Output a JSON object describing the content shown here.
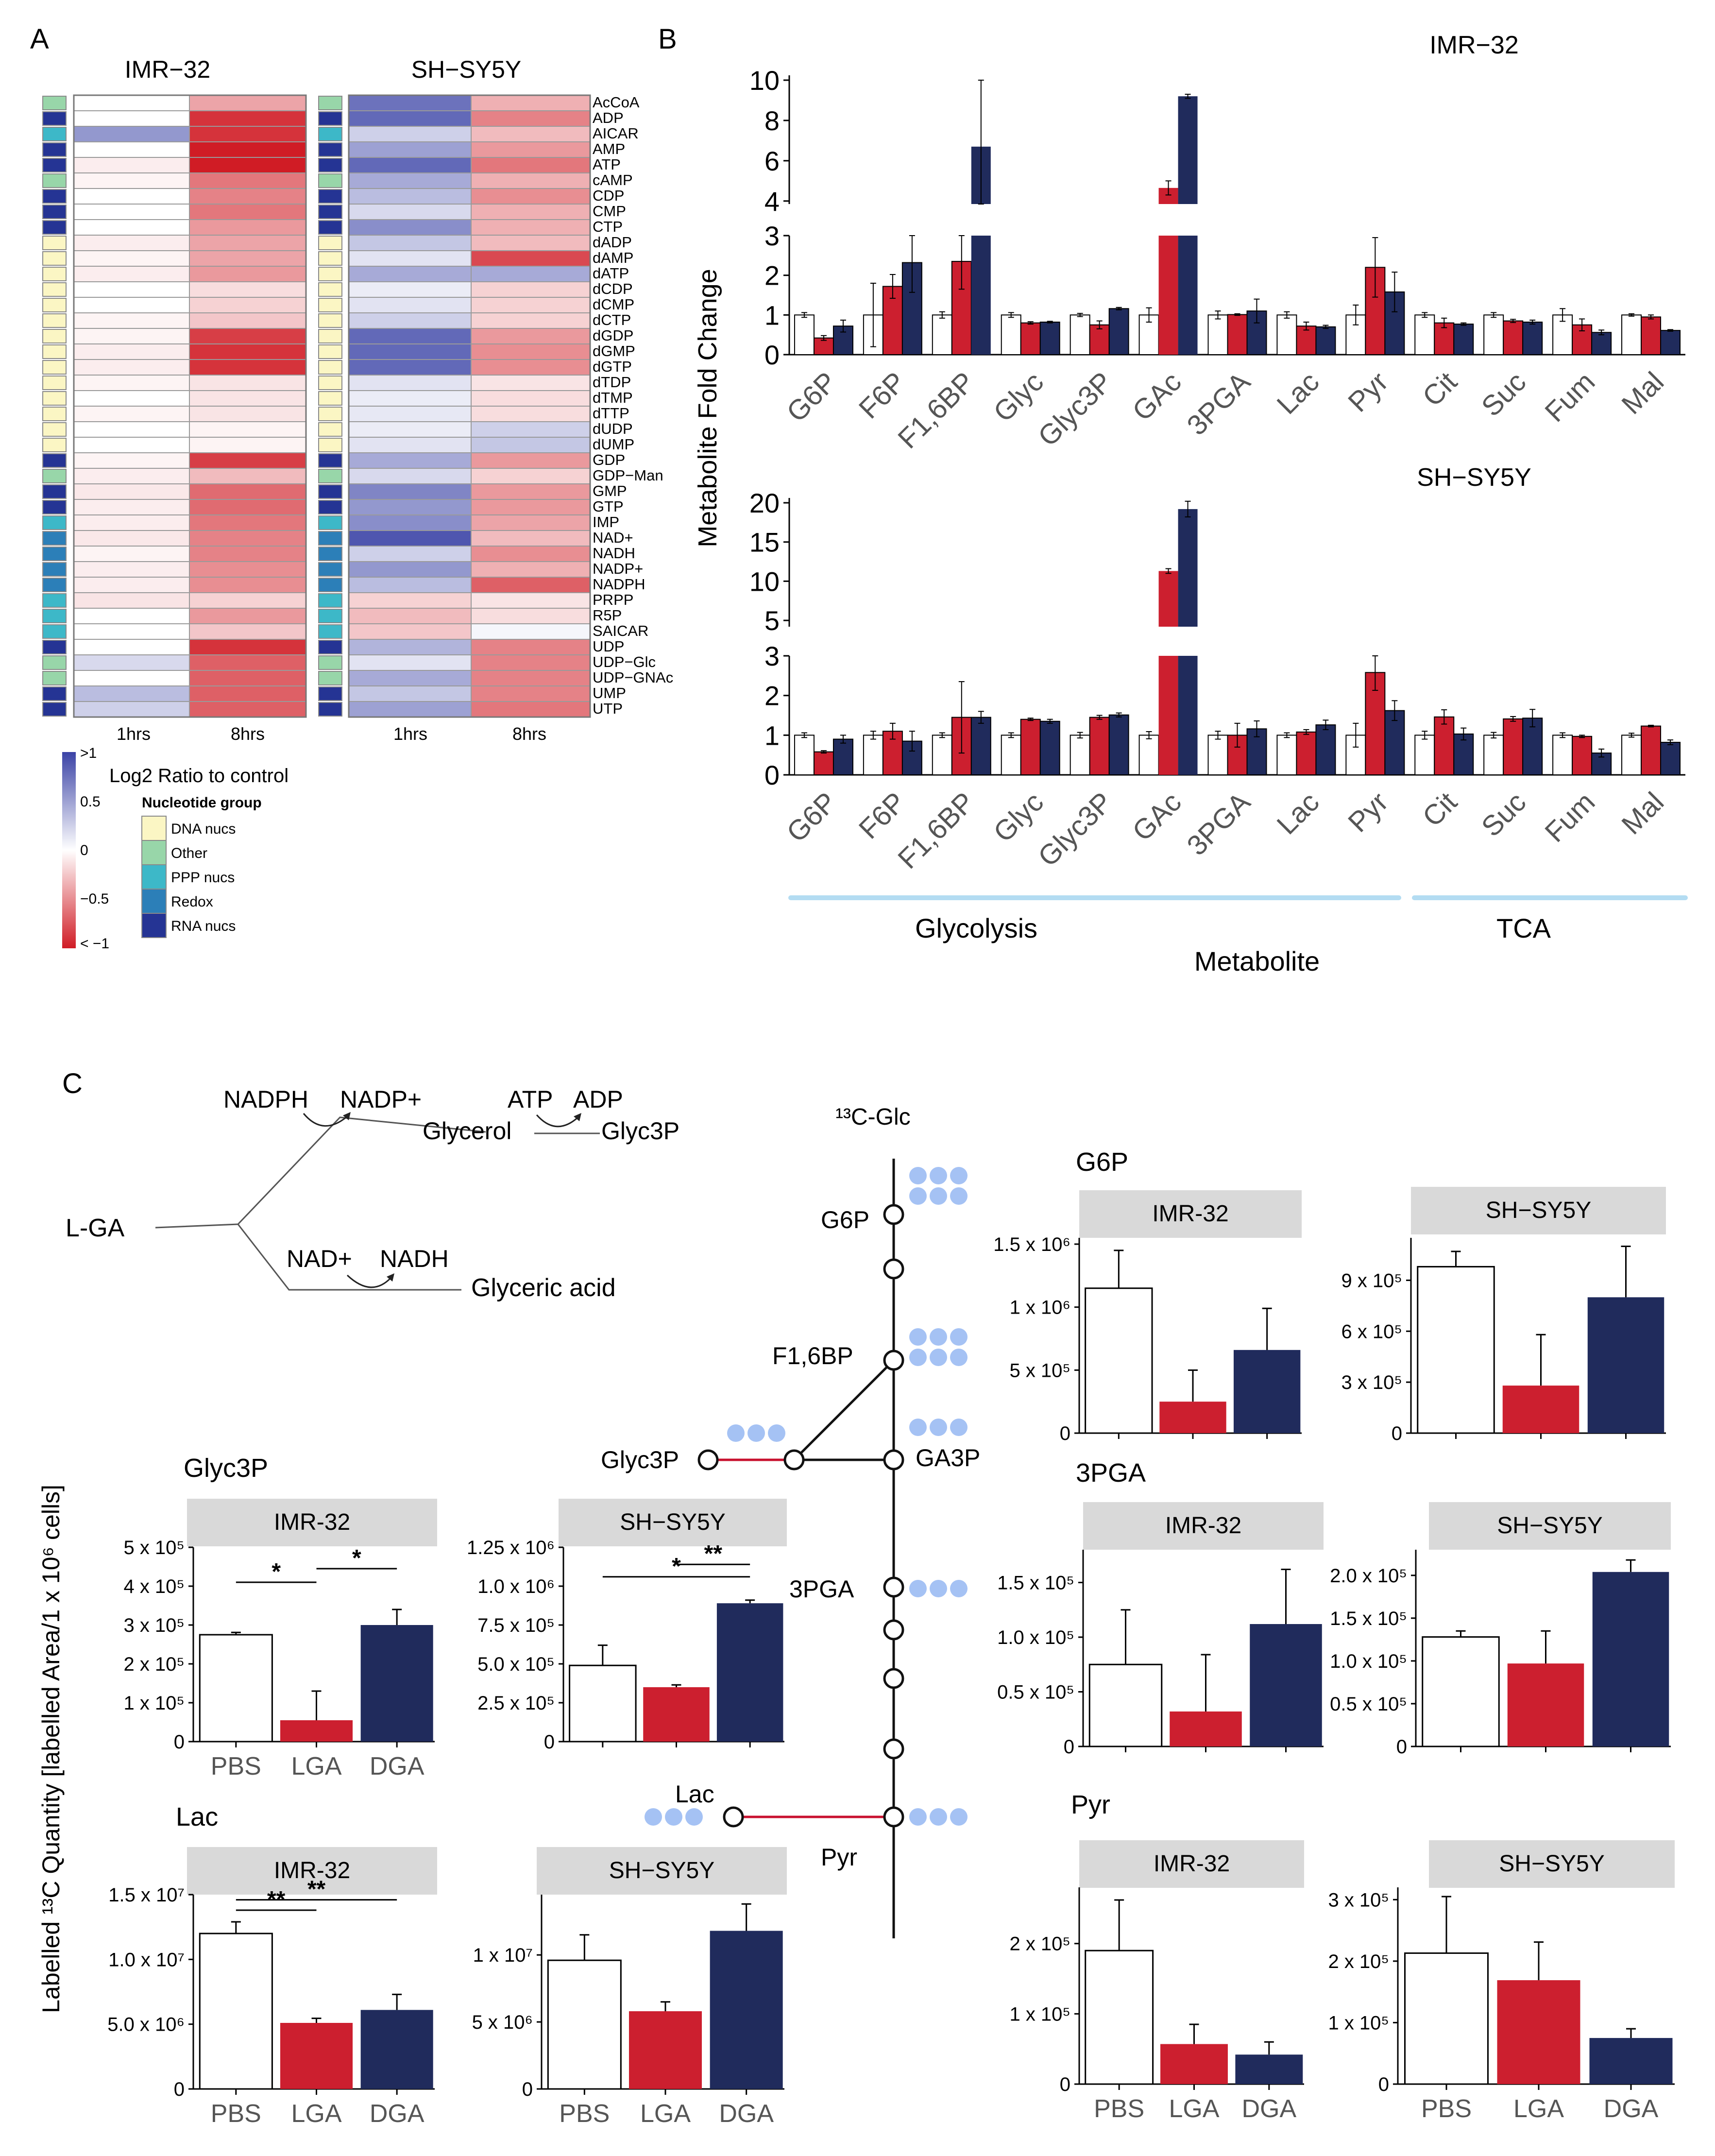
{
  "figure": {
    "panel_labels": [
      "A",
      "B",
      "C"
    ],
    "colors": {
      "pbs": "#ffffff",
      "lga": "#cc1f2f",
      "dga": "#202b5c",
      "strip": "#d9d9d9",
      "red_line": "#c8102e",
      "blue_dot": "#a5c2f4",
      "tca_line": "#b3dcf2"
    },
    "heatmap": {
      "title_left": "IMR−32",
      "title_right": "SH−SY5Y",
      "time_labels": [
        "1hrs",
        "8hrs"
      ],
      "metabolites": [
        "AcCoA",
        "ADP",
        "AICAR",
        "AMP",
        "ATP",
        "cAMP",
        "CDP",
        "CMP",
        "CTP",
        "dADP",
        "dAMP",
        "dATP",
        "dCDP",
        "dCMP",
        "dCTP",
        "dGDP",
        "dGMP",
        "dGTP",
        "dTDP",
        "dTMP",
        "dTTP",
        "dUDP",
        "dUMP",
        "GDP",
        "GDP−Man",
        "GMP",
        "GTP",
        "IMP",
        "NAD+",
        "NADH",
        "NADP+",
        "NADPH",
        "PRPP",
        "R5P",
        "SAICAR",
        "UDP",
        "UDP−Glc",
        "UDP−GNAc",
        "UMP",
        "UTP"
      ],
      "groups": [
        "Other",
        "RNA nucs",
        "PPP nucs",
        "RNA nucs",
        "RNA nucs",
        "Other",
        "RNA nucs",
        "RNA nucs",
        "RNA nucs",
        "DNA nucs",
        "DNA nucs",
        "DNA nucs",
        "DNA nucs",
        "DNA nucs",
        "DNA nucs",
        "DNA nucs",
        "DNA nucs",
        "DNA nucs",
        "DNA nucs",
        "DNA nucs",
        "DNA nucs",
        "DNA nucs",
        "DNA nucs",
        "RNA nucs",
        "Other",
        "RNA nucs",
        "RNA nucs",
        "PPP nucs",
        "Redox",
        "Redox",
        "Redox",
        "Redox",
        "PPP nucs",
        "PPP nucs",
        "PPP nucs",
        "RNA nucs",
        "Other",
        "Other",
        "RNA nucs",
        "RNA nucs"
      ],
      "group_colors": {
        "DNA nucs": "#fbf6c4",
        "Other": "#98d6a9",
        "PPP nucs": "#3db8c8",
        "Redox": "#2c7fb8",
        "RNA nucs": "#253494"
      },
      "imr32_1h": [
        0,
        0,
        0.55,
        0,
        -0.08,
        -0.05,
        0,
        0,
        0,
        -0.08,
        -0.05,
        -0.08,
        0,
        0,
        -0.05,
        -0.05,
        -0.08,
        -0.08,
        -0.05,
        0,
        -0.05,
        0,
        0,
        -0.05,
        -0.08,
        -0.1,
        -0.08,
        -0.08,
        -0.1,
        -0.05,
        -0.08,
        -0.08,
        -0.12,
        0,
        0,
        0,
        0.2,
        0,
        0.35,
        0.25
      ],
      "imr32_8h": [
        -0.4,
        -0.9,
        -0.9,
        -1,
        -1,
        -0.6,
        -0.55,
        -0.6,
        -0.45,
        -0.4,
        -0.4,
        -0.45,
        -0.15,
        -0.2,
        -0.25,
        -0.85,
        -0.9,
        -0.9,
        -0.12,
        -0.12,
        -0.12,
        -0.05,
        -0.05,
        -0.85,
        -0.3,
        -0.65,
        -0.65,
        -0.6,
        -0.55,
        -0.55,
        -0.5,
        -0.5,
        -0.2,
        -0.45,
        -0.25,
        -0.9,
        -0.7,
        -0.7,
        -0.7,
        -0.7
      ],
      "shsy5y_1h": [
        0.75,
        0.8,
        0.25,
        0.5,
        0.8,
        0.45,
        0.35,
        0.2,
        0.6,
        0.3,
        0.15,
        0.45,
        0.1,
        0.15,
        0.25,
        0.8,
        0.8,
        0.8,
        0.15,
        0.1,
        0.12,
        0.1,
        0.15,
        0.45,
        0.2,
        0.65,
        0.55,
        0.6,
        0.9,
        0.25,
        0.55,
        0.35,
        -0.2,
        -0.3,
        -0.25,
        0.4,
        0.15,
        0.45,
        0.3,
        0.5
      ],
      "shsy5y_8h": [
        -0.35,
        -0.55,
        -0.3,
        -0.45,
        -0.6,
        -0.35,
        -0.5,
        -0.35,
        -0.35,
        -0.3,
        -0.8,
        0.45,
        -0.2,
        -0.2,
        -0.2,
        -0.45,
        -0.5,
        -0.5,
        -0.12,
        -0.15,
        -0.15,
        0.25,
        0.3,
        -0.45,
        -0.2,
        -0.45,
        -0.45,
        -0.4,
        -0.3,
        -0.5,
        -0.35,
        -0.7,
        -0.12,
        -0.15,
        0.05,
        -0.55,
        -0.55,
        -0.55,
        -0.55,
        -0.6
      ],
      "legend": {
        "title": "Log2 Ratio to control",
        "ticks": [
          ">1",
          "0.5",
          "0",
          "−0.5",
          "< −1"
        ],
        "group_title": "Nucleotide group",
        "group_entries": [
          "DNA nucs",
          "Other",
          "PPP nucs",
          "Redox",
          "RNA nucs"
        ]
      }
    },
    "panel_b": {
      "y_title": "Metabolite Fold Change",
      "x_title": "Metabolite",
      "pathways": [
        "Glycolysis",
        "TCA"
      ]
    },
    "panel_c": {
      "pathway_text": {
        "lga": "L-GA",
        "nadph": "NADPH",
        "nadp": "NADP+",
        "atp": "ATP",
        "adp": "ADP",
        "glycerol": "Glycerol",
        "glyc3p": "Glyc3P",
        "nad": "NAD+",
        "nadh": "NADH",
        "glyceric": "Glyceric acid",
        "glc": "¹³C-Glc",
        "node_g6p": "G6P",
        "node_f16bp": "F1,6BP",
        "node_ga3p": "GA3P",
        "node_glyc3p": "Glyc3P",
        "node_3pga": "3PGA",
        "node_lac": "Lac",
        "node_pyr": "Pyr"
      },
      "y_title": "Labelled ¹³C Quantity [labelled Area/1 x 10⁶ cells]"
    }
  },
  "chart_data": [
    {
      "id": "B-IMR32",
      "type": "bar",
      "title": "IMR−32",
      "categories": [
        "G6P",
        "F6P",
        "F1,6BP",
        "Glyc",
        "Glyc3P",
        "GAc",
        "3PGA",
        "Lac",
        "Pyr",
        "Cit",
        "Suc",
        "Fum",
        "Mal"
      ],
      "series": [
        {
          "name": "PBS",
          "values": [
            1,
            1,
            1,
            1,
            1,
            1,
            1,
            1,
            1,
            1,
            1,
            1,
            1
          ],
          "errors": [
            0.06,
            0.8,
            0.08,
            0.06,
            0.04,
            0.18,
            0.1,
            0.08,
            0.25,
            0.06,
            0.06,
            0.16,
            0.03
          ]
        },
        {
          "name": "LGA",
          "values": [
            0.42,
            1.72,
            2.35,
            0.8,
            0.75,
            4.65,
            1.01,
            0.72,
            2.2,
            0.8,
            0.85,
            0.75,
            0.95
          ],
          "errors": [
            0.06,
            0.3,
            0.7,
            0.03,
            0.1,
            0.35,
            0.02,
            0.1,
            0.75,
            0.12,
            0.04,
            0.15,
            0.05
          ]
        },
        {
          "name": "DGA",
          "values": [
            0.72,
            2.32,
            6.7,
            0.82,
            1.16,
            9.2,
            1.1,
            0.7,
            1.58,
            0.77,
            0.82,
            0.56,
            0.61
          ],
          "errors": [
            0.15,
            0.75,
            3.3,
            0.02,
            0.03,
            0.1,
            0.3,
            0.04,
            0.5,
            0.03,
            0.05,
            0.06,
            0.02
          ]
        }
      ],
      "y_ticks_lower": [
        "0",
        "1",
        "2",
        "3"
      ],
      "y_ticks_upper": [
        "4",
        "6",
        "8",
        "10"
      ],
      "axis_break": [
        3,
        3.85
      ]
    },
    {
      "id": "B-SHSY5Y",
      "type": "bar",
      "title": "SH−SY5Y",
      "categories": [
        "G6P",
        "F6P",
        "F1,6BP",
        "Glyc",
        "Glyc3P",
        "GAc",
        "3PGA",
        "Lac",
        "Pyr",
        "Cit",
        "Suc",
        "Fum",
        "Mal"
      ],
      "series": [
        {
          "name": "PBS",
          "values": [
            1,
            1,
            1,
            1,
            1,
            1,
            1,
            1,
            1,
            1,
            1,
            1,
            1
          ],
          "errors": [
            0.06,
            0.1,
            0.06,
            0.06,
            0.07,
            0.09,
            0.1,
            0.06,
            0.3,
            0.1,
            0.07,
            0.06,
            0.05
          ]
        },
        {
          "name": "LGA",
          "values": [
            0.58,
            1.1,
            1.45,
            1.4,
            1.45,
            11.3,
            1,
            1.08,
            2.58,
            1.46,
            1.41,
            0.97,
            1.23
          ],
          "errors": [
            0.03,
            0.2,
            0.9,
            0.03,
            0.05,
            0.3,
            0.3,
            0.06,
            0.45,
            0.18,
            0.06,
            0.03,
            0.02
          ]
        },
        {
          "name": "DGA",
          "values": [
            0.9,
            0.85,
            1.45,
            1.35,
            1.51,
            19.2,
            1.16,
            1.26,
            1.62,
            1.03,
            1.43,
            0.55,
            0.82
          ],
          "errors": [
            0.1,
            0.25,
            0.15,
            0.05,
            0.05,
            1.0,
            0.2,
            0.12,
            0.25,
            0.15,
            0.22,
            0.1,
            0.06
          ]
        }
      ],
      "y_ticks_lower": [
        "0",
        "1",
        "2",
        "3"
      ],
      "y_ticks_upper": [
        "5",
        "10",
        "15",
        "20"
      ],
      "axis_break": [
        3,
        4.2
      ]
    },
    {
      "id": "C-Glyc3P-IMR32",
      "type": "bar",
      "title": "Glyc3P",
      "strip": "IMR-32",
      "categories": [
        "PBS",
        "LGA",
        "DGA"
      ],
      "show_x": true,
      "values": [
        2.75,
        0.55,
        3.0
      ],
      "errors": [
        0.06,
        0.75,
        0.4
      ],
      "ymax": 5,
      "y_ticks": [
        {
          "v": 0,
          "t": "0"
        },
        {
          "v": 1,
          "t": "1 x 10⁵"
        },
        {
          "v": 2,
          "t": "2 x 10⁵"
        },
        {
          "v": 3,
          "t": "3 x 10⁵"
        },
        {
          "v": 4,
          "t": "4 x 10⁵"
        },
        {
          "v": 5,
          "t": "5 x 10⁵"
        }
      ],
      "significance": [
        {
          "from": 0,
          "to": 1,
          "level": 4.1,
          "label": "*"
        },
        {
          "from": 1,
          "to": 2,
          "level": 4.45,
          "label": "*"
        }
      ]
    },
    {
      "id": "C-Glyc3P-SHSY5Y",
      "type": "bar",
      "title": "",
      "strip": "SH−SY5Y",
      "categories": [
        "PBS",
        "LGA",
        "DGA"
      ],
      "show_x": false,
      "values": [
        4.9,
        3.5,
        8.9
      ],
      "errors": [
        1.3,
        0.15,
        0.2
      ],
      "ymax": 12.5,
      "y_ticks": [
        {
          "v": 0,
          "t": "0"
        },
        {
          "v": 2.5,
          "t": "2.5 x 10⁵"
        },
        {
          "v": 5,
          "t": "5.0 x 10⁵"
        },
        {
          "v": 7.5,
          "t": "7.5 x 10⁵"
        },
        {
          "v": 10,
          "t": "1.0 x 10⁶"
        },
        {
          "v": 12.5,
          "t": "1.25 x 10⁶"
        }
      ],
      "significance": [
        {
          "from": 0,
          "to": 2,
          "level": 10.6,
          "label": "*"
        },
        {
          "from": 1,
          "to": 2,
          "level": 11.4,
          "label": "**"
        }
      ]
    },
    {
      "id": "C-Lac-IMR32",
      "type": "bar",
      "title": "Lac",
      "strip": "IMR-32",
      "categories": [
        "PBS",
        "LGA",
        "DGA"
      ],
      "show_x": true,
      "values": [
        12.0,
        5.1,
        6.1
      ],
      "errors": [
        0.9,
        0.35,
        1.2
      ],
      "ymax": 15,
      "y_ticks": [
        {
          "v": 0,
          "t": "0"
        },
        {
          "v": 5,
          "t": "5.0 x 10⁶"
        },
        {
          "v": 10,
          "t": "1.0 x 10⁷"
        },
        {
          "v": 15,
          "t": "1.5 x 10⁷"
        }
      ],
      "significance": [
        {
          "from": 0,
          "to": 1,
          "level": 13.8,
          "label": "**"
        },
        {
          "from": 0,
          "to": 2,
          "level": 14.6,
          "label": "**"
        }
      ]
    },
    {
      "id": "C-Lac-SHSY5Y",
      "type": "bar",
      "title": "",
      "strip": "SH−SY5Y",
      "categories": [
        "PBS",
        "LGA",
        "DGA"
      ],
      "show_x": true,
      "values": [
        9.6,
        5.8,
        11.8
      ],
      "errors": [
        1.9,
        0.7,
        2.0
      ],
      "ymax": 14.5,
      "y_ticks": [
        {
          "v": 0,
          "t": "0"
        },
        {
          "v": 5,
          "t": "5 x 10⁶"
        },
        {
          "v": 10,
          "t": "1 x 10⁷"
        }
      ],
      "significance": []
    },
    {
      "id": "C-G6P-IMR32",
      "type": "bar",
      "title": "G6P",
      "strip": "IMR-32",
      "categories": [
        "PBS",
        "LGA",
        "DGA"
      ],
      "show_x": false,
      "values": [
        11.5,
        2.5,
        6.6
      ],
      "errors": [
        3.0,
        2.5,
        3.3
      ],
      "ymax": 15.5,
      "y_ticks": [
        {
          "v": 0,
          "t": "0"
        },
        {
          "v": 5,
          "t": "5 x 10⁵"
        },
        {
          "v": 10,
          "t": "1 x 10⁶"
        },
        {
          "v": 15,
          "t": "1.5 x 10⁶"
        }
      ],
      "significance": []
    },
    {
      "id": "C-G6P-SHSY5Y",
      "type": "bar",
      "title": "",
      "strip": "SH−SY5Y",
      "categories": [
        "PBS",
        "LGA",
        "DGA"
      ],
      "show_x": false,
      "values": [
        9.8,
        2.8,
        8.0
      ],
      "errors": [
        0.9,
        3.0,
        3.0
      ],
      "ymax": 11.5,
      "y_ticks": [
        {
          "v": 0,
          "t": "0"
        },
        {
          "v": 3,
          "t": "3 x 10⁵"
        },
        {
          "v": 6,
          "t": "6 x 10⁵"
        },
        {
          "v": 9,
          "t": "9 x 10⁵"
        }
      ],
      "significance": []
    },
    {
      "id": "C-3PGA-IMR32",
      "type": "bar",
      "title": "3PGA",
      "strip": "IMR-32",
      "categories": [
        "PBS",
        "LGA",
        "DGA"
      ],
      "show_x": false,
      "values": [
        0.75,
        0.32,
        1.12
      ],
      "errors": [
        0.5,
        0.52,
        0.5
      ],
      "ymax": 1.8,
      "y_ticks": [
        {
          "v": 0,
          "t": "0"
        },
        {
          "v": 0.5,
          "t": "0.5 x 10⁵"
        },
        {
          "v": 1.0,
          "t": "1.0 x 10⁵"
        },
        {
          "v": 1.5,
          "t": "1.5 x 10⁵"
        }
      ],
      "significance": []
    },
    {
      "id": "C-3PGA-SHSY5Y",
      "type": "bar",
      "title": "",
      "strip": "SH−SY5Y",
      "categories": [
        "PBS",
        "LGA",
        "DGA"
      ],
      "show_x": false,
      "values": [
        1.28,
        0.97,
        2.04
      ],
      "errors": [
        0.07,
        0.38,
        0.14
      ],
      "ymax": 2.3,
      "y_ticks": [
        {
          "v": 0,
          "t": "0"
        },
        {
          "v": 0.5,
          "t": "0.5 x 10⁵"
        },
        {
          "v": 1.0,
          "t": "1.0 x 10⁵"
        },
        {
          "v": 1.5,
          "t": "1.5 x 10⁵"
        },
        {
          "v": 2.0,
          "t": "2.0 x 10⁵"
        }
      ],
      "significance": []
    },
    {
      "id": "C-Pyr-IMR32",
      "type": "bar",
      "title": "Pyr",
      "strip": "IMR-32",
      "categories": [
        "PBS",
        "LGA",
        "DGA"
      ],
      "show_x": true,
      "values": [
        1.9,
        0.57,
        0.42
      ],
      "errors": [
        0.72,
        0.28,
        0.18
      ],
      "ymax": 2.8,
      "y_ticks": [
        {
          "v": 0,
          "t": "0"
        },
        {
          "v": 1,
          "t": "1 x 10⁵"
        },
        {
          "v": 2,
          "t": "2 x 10⁵"
        }
      ],
      "significance": []
    },
    {
      "id": "C-Pyr-SHSY5Y",
      "type": "bar",
      "title": "",
      "strip": "SH−SY5Y",
      "categories": [
        "PBS",
        "LGA",
        "DGA"
      ],
      "show_x": true,
      "values": [
        2.13,
        1.69,
        0.75
      ],
      "errors": [
        0.92,
        0.62,
        0.15
      ],
      "ymax": 3.2,
      "y_ticks": [
        {
          "v": 0,
          "t": "0"
        },
        {
          "v": 1,
          "t": "1 x 10⁵"
        },
        {
          "v": 2,
          "t": "2 x 10⁵"
        },
        {
          "v": 3,
          "t": "3 x 10⁵"
        }
      ],
      "significance": []
    }
  ]
}
